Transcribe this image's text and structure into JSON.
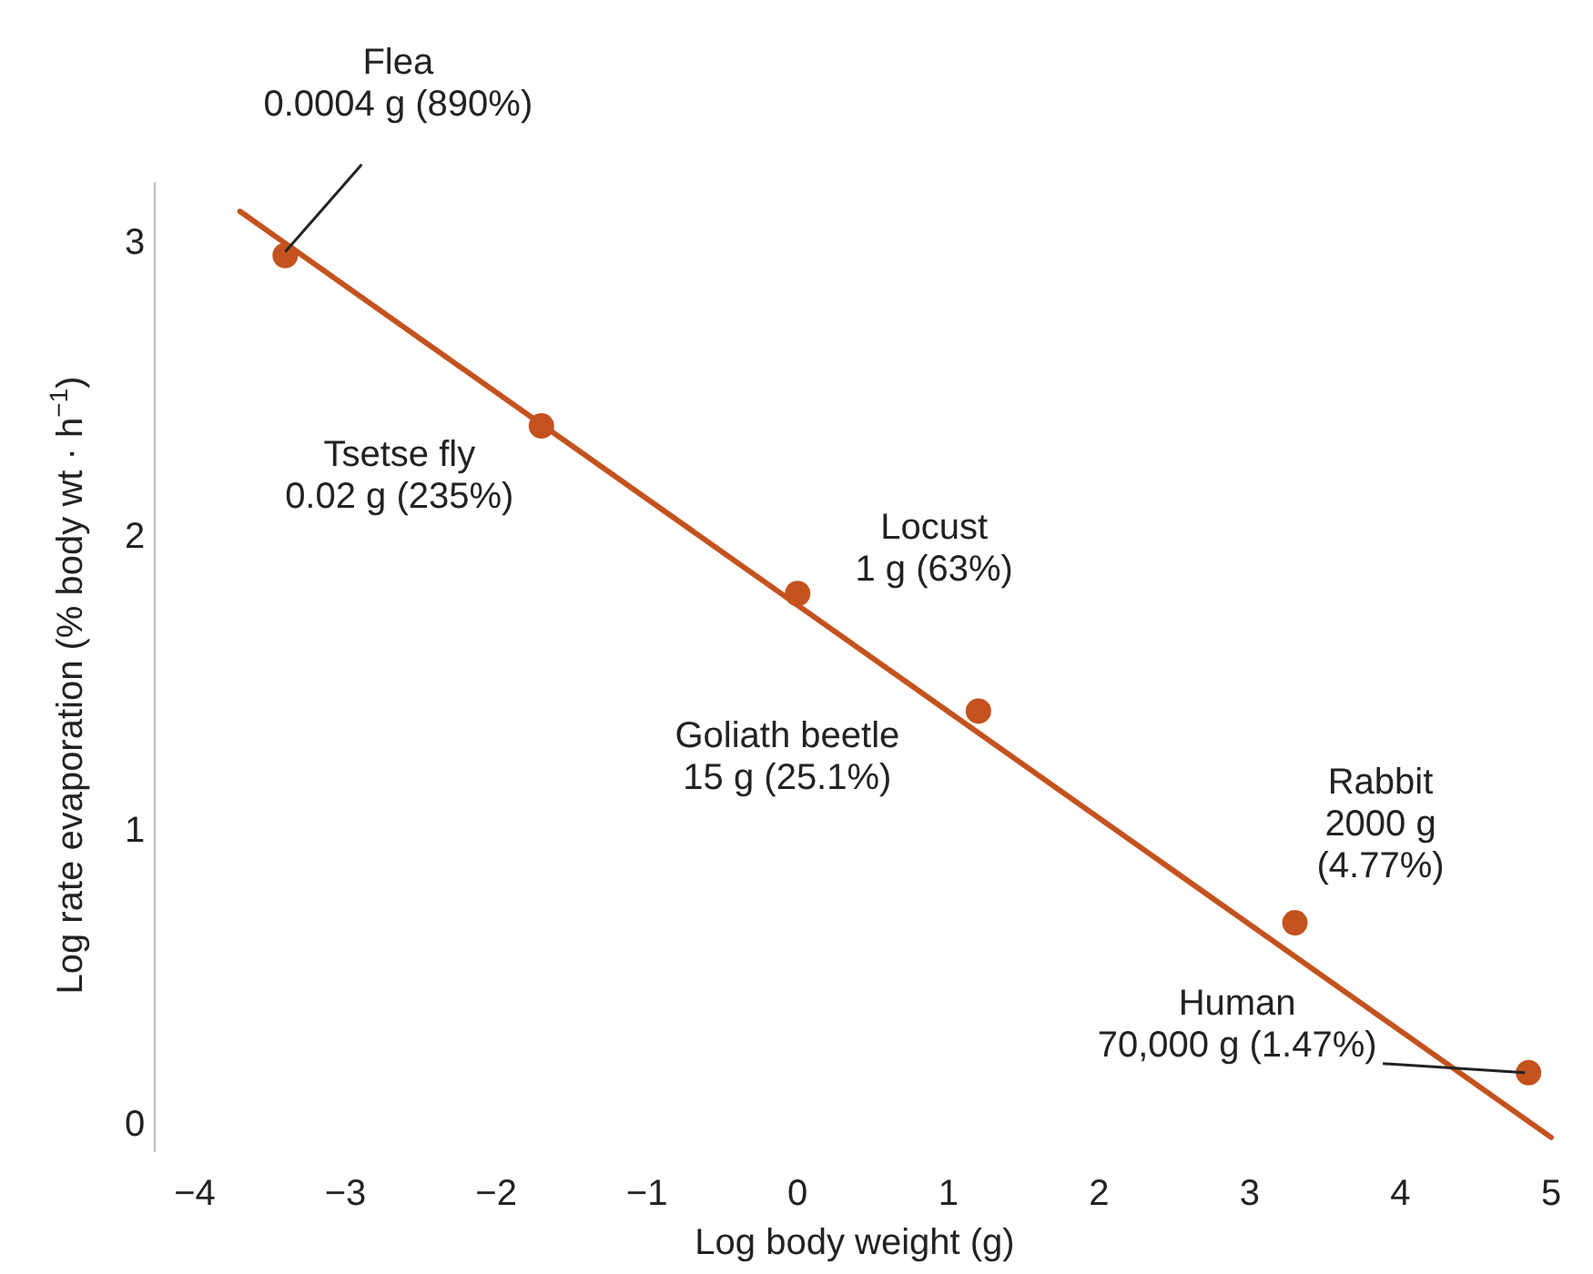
{
  "chart_data": {
    "type": "scatter",
    "xlabel": "Log body weight (g)",
    "ylabel": "Log rate evaporation (% body wt · h$^{−1}$)",
    "xlim": [
      -4,
      5
    ],
    "xticks": [
      {
        "value": -4,
        "label": "−4"
      },
      {
        "value": -3,
        "label": "−3"
      },
      {
        "value": -2,
        "label": "−2"
      },
      {
        "value": -1,
        "label": "−1"
      },
      0,
      1,
      2,
      3,
      4,
      5
    ],
    "ylim": [
      -0.1,
      3.2
    ],
    "yticks": [
      0,
      1,
      2,
      3
    ],
    "grid": false,
    "series": [
      {
        "type": "line",
        "color": "#c4521e",
        "x": [
          -3.7,
          5
        ],
        "values": [
          3.1,
          -0.05
        ],
        "line_style": "solid"
      },
      {
        "color": "#c4521e",
        "marker": "circle",
        "x": [
          -3.4,
          -1.7,
          0,
          1.2,
          3.3,
          4.85
        ],
        "values": [
          2.95,
          2.37,
          1.8,
          1.4,
          0.68,
          0.17
        ]
      }
    ],
    "annotations": [
      {
        "text": "Flea\n0.0004 g (890%)",
        "x": -3.4,
        "y": 2.95
      },
      {
        "text": "Tsetse fly\n0.02 g (235%)",
        "x": -1.7,
        "y": 2.37
      },
      {
        "text": "Locust\n1 g (63%)",
        "x": 0,
        "y": 1.8
      },
      {
        "text": "Goliath beetle\n15 g (25.1%)",
        "x": 1.2,
        "y": 1.4
      },
      {
        "text": "Rabbit\n2000 g\n(4.77%)",
        "x": 3.3,
        "y": 0.68
      },
      {
        "text": "Human\n70,000 g (1.47%)",
        "x": 4.85,
        "y": 0.17
      }
    ]
  }
}
